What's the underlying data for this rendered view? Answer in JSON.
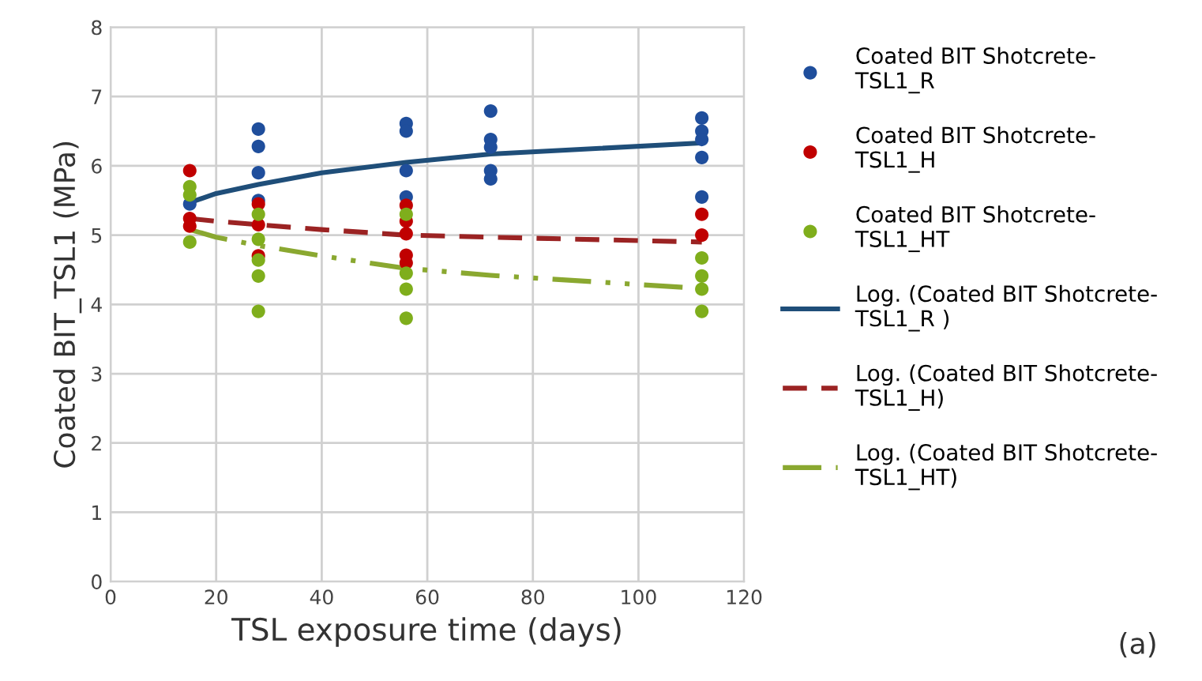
{
  "chart_data": {
    "type": "scatter",
    "xlabel": "TSL exposure time (days)",
    "ylabel": "Coated BIT_TSL1 (MPa)",
    "xlim": [
      0,
      120
    ],
    "ylim": [
      0,
      8
    ],
    "xticks": [
      0,
      20,
      40,
      60,
      80,
      100,
      120
    ],
    "yticks": [
      0,
      1,
      2,
      3,
      4,
      5,
      6,
      7,
      8
    ],
    "grid": true,
    "legend": "right",
    "marker": "circle",
    "annotations": [
      "(a)"
    ],
    "series": [
      {
        "name": "Coated BIT Shotcrete-\nTSL1_R",
        "color": "#1f4e9c",
        "x": [
          15,
          28,
          28,
          28,
          28,
          56,
          56,
          56,
          56,
          72,
          72,
          72,
          72,
          72,
          112,
          112,
          112,
          112,
          112
        ],
        "values": [
          5.45,
          6.53,
          6.28,
          5.9,
          5.5,
          6.61,
          6.5,
          5.93,
          5.55,
          6.79,
          6.38,
          6.27,
          5.93,
          5.81,
          6.69,
          6.5,
          6.38,
          6.12,
          5.55
        ]
      },
      {
        "name": "Coated BIT Shotcrete-\nTSL1_H",
        "color": "#c00000",
        "x": [
          15,
          15,
          15,
          28,
          28,
          28,
          56,
          56,
          56,
          56,
          56,
          112,
          112
        ],
        "values": [
          5.93,
          5.24,
          5.13,
          5.45,
          5.15,
          4.7,
          5.43,
          5.2,
          5.02,
          4.71,
          4.6,
          5.3,
          5.0
        ]
      },
      {
        "name": "Coated BIT Shotcrete-\nTSL1_HT",
        "color": "#7fae1c",
        "x": [
          15,
          15,
          15,
          28,
          28,
          28,
          28,
          28,
          56,
          56,
          56,
          56,
          112,
          112,
          112,
          112
        ],
        "values": [
          5.7,
          5.58,
          4.9,
          5.3,
          4.94,
          4.64,
          4.41,
          3.9,
          5.3,
          4.45,
          4.22,
          3.8,
          4.67,
          4.41,
          4.22,
          3.9
        ]
      },
      {
        "name": "Log. (Coated BIT Shotcrete-\nTSL1_R )",
        "type": "line",
        "marker": "none",
        "line_style": "solid",
        "color": "#1f4e79",
        "x": [
          15,
          20,
          28,
          40,
          56,
          72,
          112
        ],
        "values": [
          5.47,
          5.6,
          5.73,
          5.9,
          6.05,
          6.17,
          6.33
        ]
      },
      {
        "name": "Log. (Coated BIT Shotcrete-\nTSL1_H)",
        "type": "line",
        "marker": "none",
        "line_style": "dashed",
        "color": "#9b2323",
        "x": [
          15,
          20,
          28,
          40,
          56,
          72,
          112
        ],
        "values": [
          5.24,
          5.2,
          5.15,
          5.08,
          5.0,
          4.97,
          4.9
        ]
      },
      {
        "name": "Log. (Coated BIT Shotcrete-\nTSL1_HT)",
        "type": "line",
        "marker": "none",
        "line_style": "dashdot",
        "color": "#8aa830",
        "x": [
          15,
          20,
          28,
          40,
          56,
          72,
          112
        ],
        "values": [
          5.08,
          4.97,
          4.85,
          4.7,
          4.52,
          4.42,
          4.23
        ]
      }
    ]
  }
}
